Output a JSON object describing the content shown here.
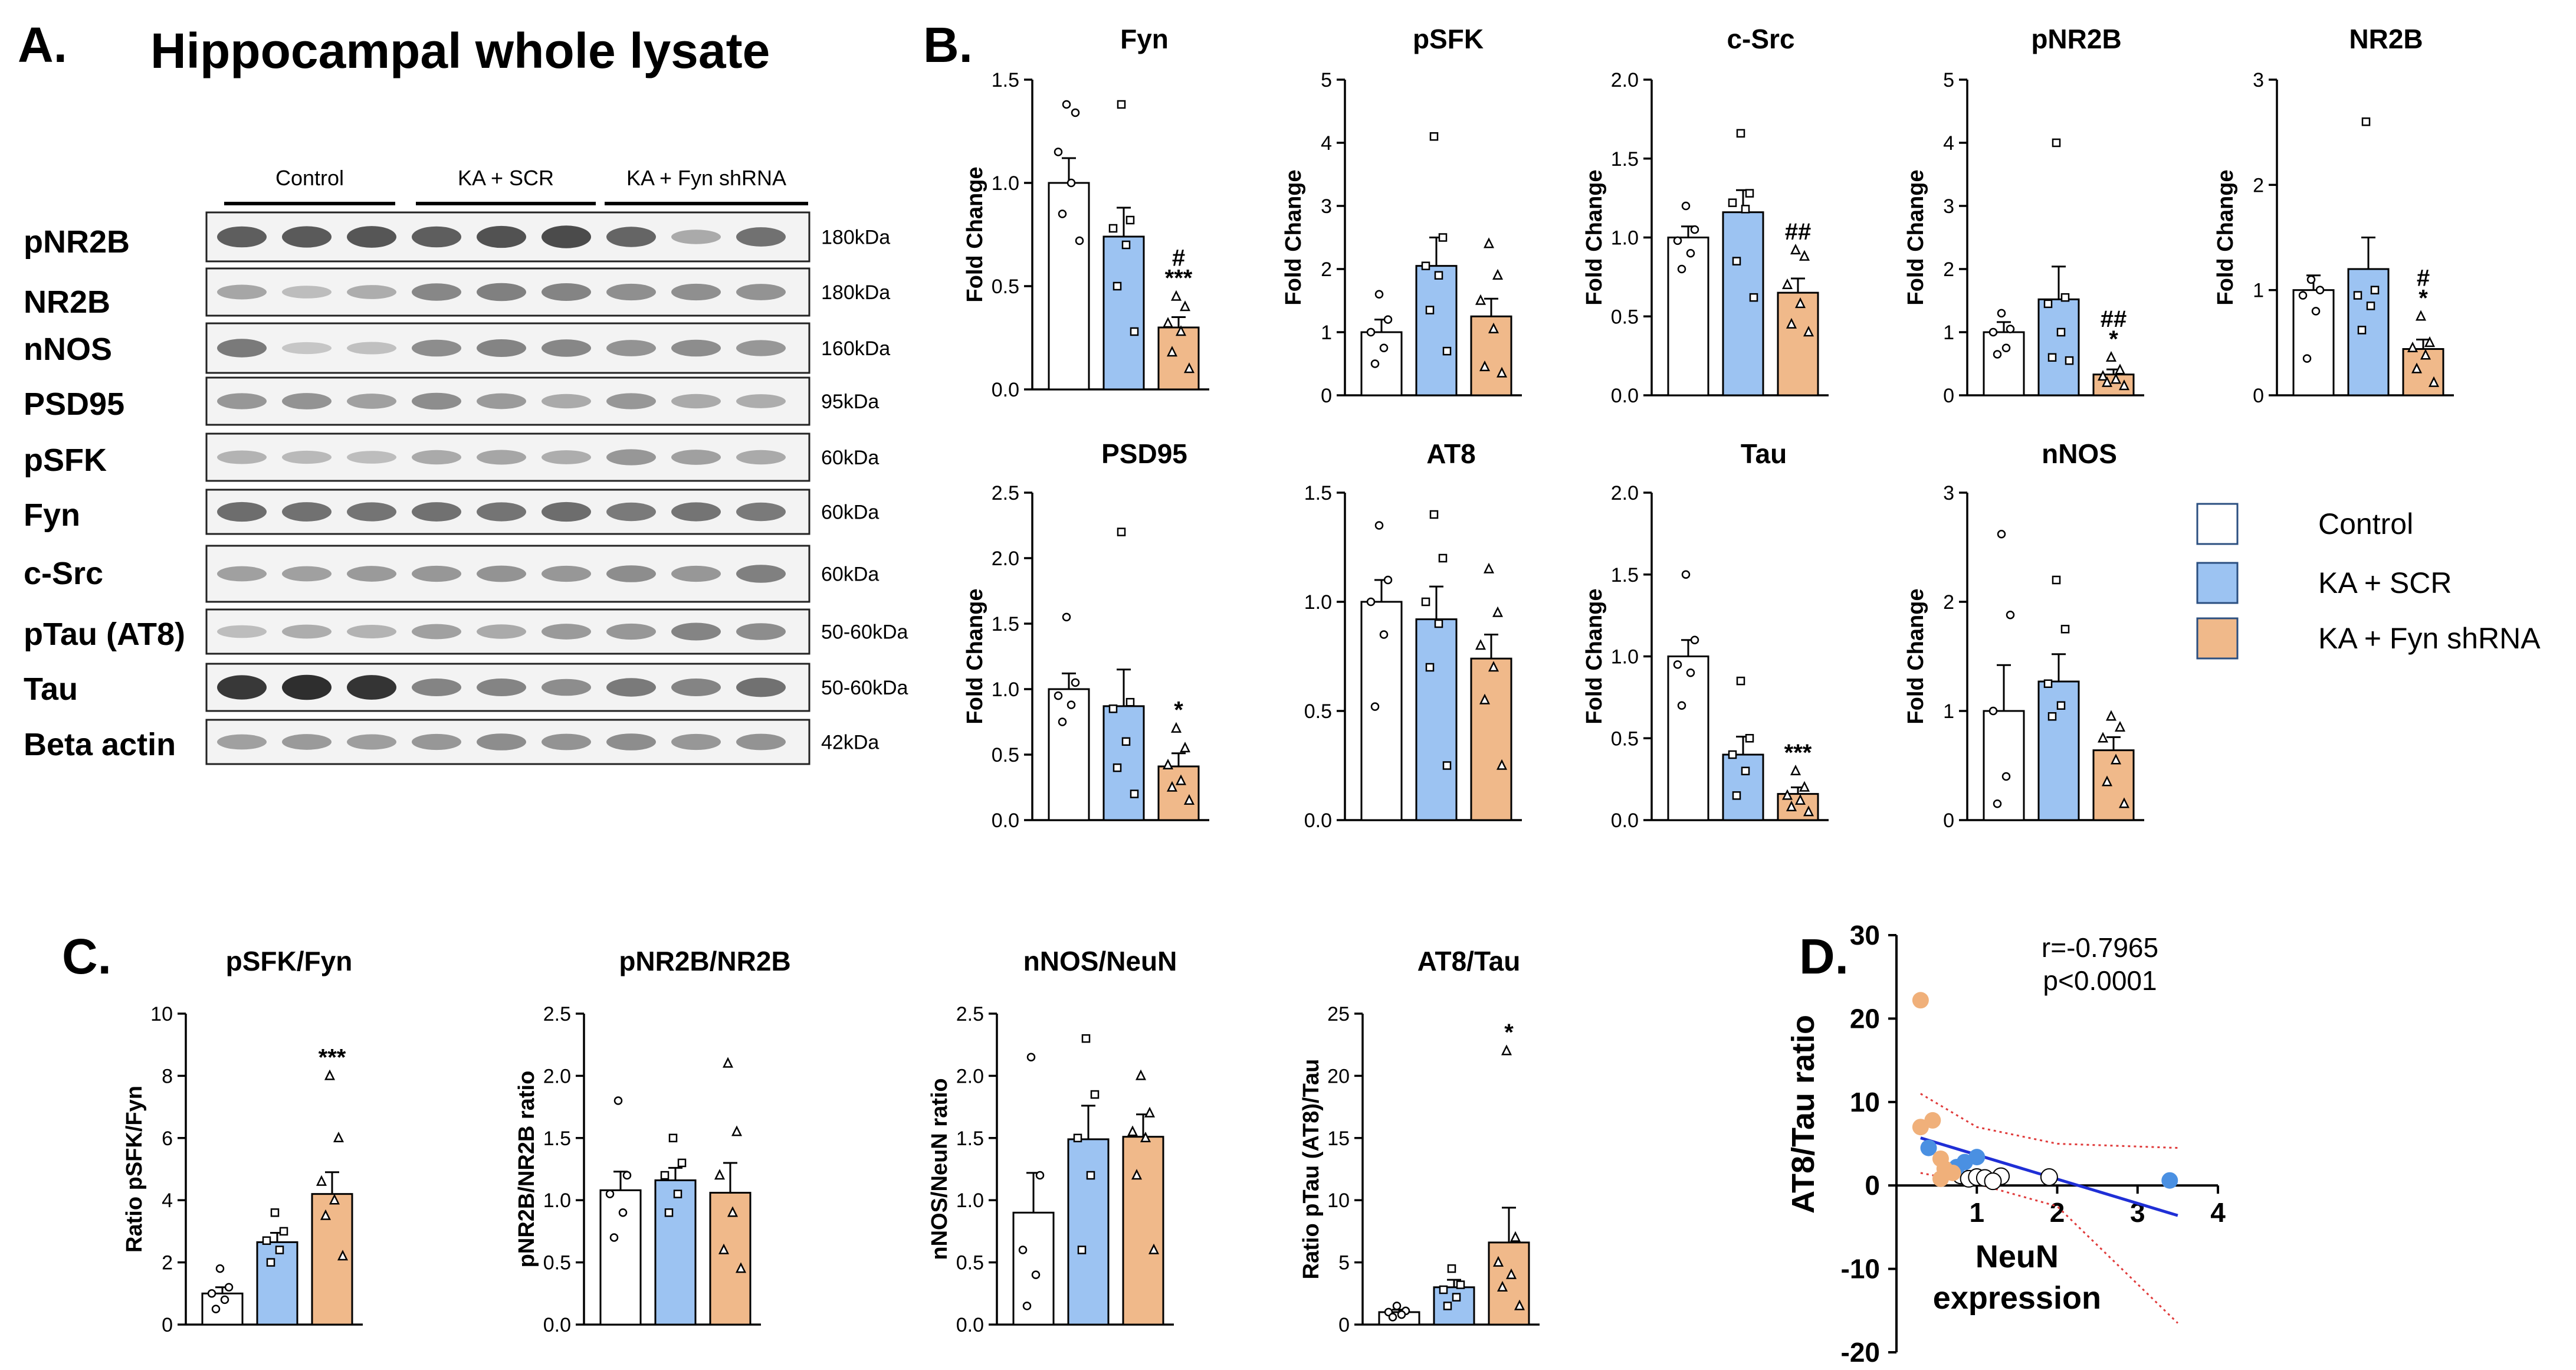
{
  "panel_a": {
    "letter": "A.",
    "title": "Hippocampal whole lysate",
    "groups": [
      "Control",
      "KA + SCR",
      "KA + Fyn shRNA"
    ],
    "blots": [
      {
        "label": "pNR2B",
        "kda": "180kDa"
      },
      {
        "label": "NR2B",
        "kda": "180kDa"
      },
      {
        "label": "nNOS",
        "kda": "160kDa"
      },
      {
        "label": "PSD95",
        "kda": "95kDa"
      },
      {
        "label": "pSFK",
        "kda": "60kDa"
      },
      {
        "label": "Fyn",
        "kda": "60kDa"
      },
      {
        "label": "c-Src",
        "kda": "60kDa"
      },
      {
        "label": "pTau (AT8)",
        "kda": "50-60kDa"
      },
      {
        "label": "Tau",
        "kda": "50-60kDa"
      },
      {
        "label": "Beta actin",
        "kda": "42kDa"
      }
    ],
    "band_intensity": [
      [
        0.7,
        0.72,
        0.74,
        0.7,
        0.76,
        0.8,
        0.66,
        0.3,
        0.6
      ],
      [
        0.32,
        0.2,
        0.28,
        0.48,
        0.52,
        0.5,
        0.44,
        0.44,
        0.42
      ],
      [
        0.55,
        0.15,
        0.18,
        0.45,
        0.5,
        0.48,
        0.42,
        0.45,
        0.4
      ],
      [
        0.4,
        0.42,
        0.35,
        0.45,
        0.38,
        0.3,
        0.4,
        0.3,
        0.28
      ],
      [
        0.25,
        0.22,
        0.2,
        0.3,
        0.32,
        0.28,
        0.4,
        0.35,
        0.3
      ],
      [
        0.62,
        0.6,
        0.58,
        0.6,
        0.58,
        0.62,
        0.55,
        0.58,
        0.55
      ],
      [
        0.35,
        0.35,
        0.38,
        0.4,
        0.42,
        0.4,
        0.45,
        0.4,
        0.52
      ],
      [
        0.2,
        0.28,
        0.25,
        0.35,
        0.3,
        0.38,
        0.4,
        0.5,
        0.45
      ],
      [
        0.9,
        0.95,
        0.92,
        0.5,
        0.5,
        0.45,
        0.55,
        0.5,
        0.6
      ],
      [
        0.35,
        0.38,
        0.36,
        0.4,
        0.45,
        0.42,
        0.45,
        0.4,
        0.42
      ]
    ]
  },
  "panel_b": {
    "letter": "B."
  },
  "panel_c": {
    "letter": "C."
  },
  "panel_d": {
    "letter": "D."
  },
  "legend": {
    "items": [
      {
        "label": "Control",
        "color": "#ffffff"
      },
      {
        "label": "KA + SCR",
        "color": "#9cc3f2"
      },
      {
        "label": "KA + Fyn shRNA",
        "color": "#f0b98a"
      }
    ]
  },
  "colors": {
    "control": "#ffffff",
    "scr": "#9cc3f2",
    "fyn": "#f0b98a",
    "stroke": "#000000",
    "regression": "#1f2fd6",
    "ci": "#e03b3b",
    "d_scr": "#4a90e2",
    "d_fyn": "#f0b07a"
  },
  "chart_data": [
    {
      "id": "fyn",
      "type": "bar",
      "title": "Fyn",
      "ylabel": "Fold Change",
      "ylim": [
        0,
        1.5
      ],
      "ticks": [
        "0.0",
        "0.5",
        "1.0",
        "1.5"
      ],
      "categories": [
        "Control",
        "KA + SCR",
        "KA + Fyn shRNA"
      ],
      "values": [
        1.0,
        0.74,
        0.3
      ],
      "sem": [
        0.12,
        0.14,
        0.05
      ],
      "points": [
        [
          1.38,
          1.34,
          1.15,
          1.0,
          0.85,
          0.72
        ],
        [
          1.38,
          0.82,
          0.78,
          0.7,
          0.5,
          0.28
        ],
        [
          0.45,
          0.4,
          0.32,
          0.28,
          0.18,
          0.1
        ]
      ],
      "annotations": [
        "",
        "",
        "#\n***"
      ]
    },
    {
      "id": "psfk",
      "type": "bar",
      "title": "pSFK",
      "ylabel": "Fold Change",
      "ylim": [
        0,
        5
      ],
      "ticks": [
        "0",
        "1",
        "2",
        "3",
        "4",
        "5"
      ],
      "categories": [
        "Control",
        "KA + SCR",
        "KA + Fyn shRNA"
      ],
      "values": [
        1.0,
        2.05,
        1.25
      ],
      "sem": [
        0.2,
        0.45,
        0.28
      ],
      "points": [
        [
          1.6,
          1.2,
          1.0,
          0.75,
          0.5
        ],
        [
          4.1,
          2.5,
          2.05,
          1.9,
          1.35,
          0.7
        ],
        [
          2.4,
          1.9,
          1.5,
          1.05,
          0.45,
          0.35
        ]
      ],
      "annotations": [
        "",
        "",
        ""
      ]
    },
    {
      "id": "csrc",
      "type": "bar",
      "title": "c-Src",
      "ylabel": "Fold Change",
      "ylim": [
        0,
        2.0
      ],
      "ticks": [
        "0.0",
        "0.5",
        "1.0",
        "1.5",
        "2.0"
      ],
      "categories": [
        "Control",
        "KA + SCR",
        "KA + Fyn shRNA"
      ],
      "values": [
        1.0,
        1.16,
        0.65
      ],
      "sem": [
        0.07,
        0.14,
        0.09
      ],
      "points": [
        [
          1.2,
          1.05,
          0.98,
          0.9,
          0.8
        ],
        [
          1.66,
          1.28,
          1.22,
          1.18,
          0.85,
          0.62
        ],
        [
          0.92,
          0.88,
          0.7,
          0.58,
          0.45,
          0.4
        ]
      ],
      "annotations": [
        "",
        "",
        "##"
      ]
    },
    {
      "id": "pnr2b",
      "type": "bar",
      "title": "pNR2B",
      "ylabel": "Fold Change",
      "ylim": [
        0,
        5
      ],
      "ticks": [
        "0",
        "1",
        "2",
        "3",
        "4",
        "5"
      ],
      "categories": [
        "Control",
        "KA + SCR",
        "KA + Fyn shRNA"
      ],
      "values": [
        1.0,
        1.52,
        0.33
      ],
      "sem": [
        0.16,
        0.52,
        0.08
      ],
      "points": [
        [
          1.3,
          1.05,
          1.0,
          0.75,
          0.65
        ],
        [
          4.0,
          1.55,
          1.45,
          1.0,
          0.6,
          0.55
        ],
        [
          0.6,
          0.4,
          0.3,
          0.25,
          0.2,
          0.15
        ]
      ],
      "annotations": [
        "",
        "",
        "##\n*"
      ]
    },
    {
      "id": "nr2b",
      "type": "bar",
      "title": "NR2B",
      "ylabel": "Fold Change",
      "ylim": [
        0,
        3
      ],
      "ticks": [
        "0",
        "1",
        "2",
        "3"
      ],
      "categories": [
        "Control",
        "KA + SCR",
        "KA + Fyn shRNA"
      ],
      "values": [
        1.0,
        1.2,
        0.44
      ],
      "sem": [
        0.14,
        0.3,
        0.09
      ],
      "points": [
        [
          1.1,
          1.0,
          0.95,
          0.8,
          0.35
        ],
        [
          2.6,
          1.0,
          0.95,
          0.85,
          0.62
        ],
        [
          0.75,
          0.5,
          0.45,
          0.38,
          0.25,
          0.12
        ]
      ],
      "annotations": [
        "",
        "",
        "#\n*"
      ]
    },
    {
      "id": "psd95",
      "type": "bar",
      "title": "PSD95",
      "ylabel": "Fold Change",
      "ylim": [
        0,
        2.5
      ],
      "ticks": [
        "0.0",
        "0.5",
        "1.0",
        "1.5",
        "2.0",
        "2.5"
      ],
      "categories": [
        "Control",
        "KA + SCR",
        "KA + Fyn shRNA"
      ],
      "values": [
        1.0,
        0.87,
        0.41
      ],
      "sem": [
        0.12,
        0.28,
        0.1
      ],
      "points": [
        [
          1.55,
          1.05,
          0.95,
          0.88,
          0.75
        ],
        [
          2.2,
          0.9,
          0.85,
          0.6,
          0.4,
          0.2
        ],
        [
          0.7,
          0.55,
          0.42,
          0.3,
          0.25,
          0.15
        ]
      ],
      "annotations": [
        "",
        "",
        "*"
      ]
    },
    {
      "id": "at8",
      "type": "bar",
      "title": "AT8",
      "ylabel": "",
      "ylim": [
        0,
        1.5
      ],
      "ticks": [
        "0.0",
        "0.5",
        "1.0",
        "1.5"
      ],
      "categories": [
        "Control",
        "KA + SCR",
        "KA + Fyn shRNA"
      ],
      "values": [
        1.0,
        0.92,
        0.74
      ],
      "sem": [
        0.1,
        0.15,
        0.11
      ],
      "points": [
        [
          1.35,
          1.1,
          1.0,
          0.85,
          0.52
        ],
        [
          1.4,
          1.2,
          1.0,
          0.9,
          0.7,
          0.25
        ],
        [
          1.15,
          0.95,
          0.8,
          0.7,
          0.55,
          0.25
        ]
      ],
      "annotations": [
        "",
        "",
        ""
      ]
    },
    {
      "id": "tau",
      "type": "bar",
      "title": "Tau",
      "ylabel": "Fold Change",
      "ylim": [
        0,
        2.0
      ],
      "ticks": [
        "0.0",
        "0.5",
        "1.0",
        "1.5",
        "2.0"
      ],
      "categories": [
        "Control",
        "KA + SCR",
        "KA + Fyn shRNA"
      ],
      "values": [
        1.0,
        0.4,
        0.16
      ],
      "sem": [
        0.1,
        0.11,
        0.04
      ],
      "points": [
        [
          1.5,
          1.1,
          0.95,
          0.9,
          0.7
        ],
        [
          0.85,
          0.5,
          0.4,
          0.3,
          0.15
        ],
        [
          0.3,
          0.2,
          0.15,
          0.12,
          0.08,
          0.05
        ]
      ],
      "annotations": [
        "",
        "",
        "***"
      ]
    },
    {
      "id": "nnos",
      "type": "bar",
      "title": "nNOS",
      "ylabel": "Fold Change",
      "ylim": [
        0,
        3
      ],
      "ticks": [
        "0",
        "1",
        "2",
        "3"
      ],
      "categories": [
        "Control",
        "KA + SCR",
        "KA + Fyn shRNA"
      ],
      "values": [
        1.0,
        1.27,
        0.64
      ],
      "sem": [
        0.42,
        0.25,
        0.12
      ],
      "points": [
        [
          2.62,
          1.88,
          1.0,
          0.4,
          0.15
        ],
        [
          2.2,
          1.75,
          1.25,
          1.05,
          0.95
        ],
        [
          0.95,
          0.85,
          0.75,
          0.55,
          0.35,
          0.15
        ]
      ],
      "annotations": [
        "",
        "",
        ""
      ]
    },
    {
      "id": "psfk_fyn",
      "type": "bar",
      "title": "pSFK/Fyn",
      "ylabel": "Ratio pSFK/Fyn",
      "ylim": [
        0,
        10
      ],
      "ticks": [
        "0",
        "2",
        "4",
        "6",
        "8",
        "10"
      ],
      "categories": [
        "Control",
        "KA + SCR",
        "KA + Fyn shRNA"
      ],
      "values": [
        1.0,
        2.65,
        4.2
      ],
      "sem": [
        0.2,
        0.3,
        0.7
      ],
      "points": [
        [
          1.8,
          1.2,
          1.0,
          0.8,
          0.5
        ],
        [
          3.6,
          3.0,
          2.7,
          2.4,
          2.0
        ],
        [
          8.0,
          6.0,
          4.6,
          4.0,
          3.5,
          2.2
        ]
      ],
      "annotations": [
        "",
        "",
        "***"
      ]
    },
    {
      "id": "pnr2b_nr2b",
      "type": "bar",
      "title": "pNR2B/NR2B",
      "ylabel": "pNR2B/NR2B ratio",
      "ylim": [
        0,
        2.5
      ],
      "ticks": [
        "0.0",
        "0.5",
        "1.0",
        "1.5",
        "2.0",
        "2.5"
      ],
      "categories": [
        "Control",
        "KA + SCR",
        "KA + Fyn shRNA"
      ],
      "values": [
        1.08,
        1.16,
        1.06
      ],
      "sem": [
        0.15,
        0.1,
        0.24
      ],
      "points": [
        [
          1.8,
          1.2,
          1.05,
          0.9,
          0.7
        ],
        [
          1.5,
          1.3,
          1.2,
          1.05,
          0.9
        ],
        [
          2.1,
          1.55,
          1.2,
          0.9,
          0.6,
          0.45
        ]
      ],
      "annotations": [
        "",
        "",
        ""
      ]
    },
    {
      "id": "nnos_neun",
      "type": "bar",
      "title": "nNOS/NeuN",
      "ylabel": "nNOS/NeuN ratio",
      "ylim": [
        0,
        2.5
      ],
      "ticks": [
        "0.0",
        "0.5",
        "1.0",
        "1.5",
        "2.0",
        "2.5"
      ],
      "categories": [
        "Control",
        "KA + SCR",
        "KA + Fyn shRNA"
      ],
      "values": [
        0.9,
        1.49,
        1.51
      ],
      "sem": [
        0.32,
        0.27,
        0.18
      ],
      "points": [
        [
          2.15,
          1.2,
          0.6,
          0.4,
          0.15
        ],
        [
          2.3,
          1.85,
          1.5,
          1.2,
          0.6
        ],
        [
          2.0,
          1.7,
          1.55,
          1.5,
          1.2,
          0.6
        ]
      ],
      "annotations": [
        "",
        "",
        ""
      ]
    },
    {
      "id": "at8_tau",
      "type": "bar",
      "title": "AT8/Tau",
      "ylabel": "Ratio pTau (AT8)/Tau",
      "ylim": [
        0,
        25
      ],
      "ticks": [
        "0",
        "5",
        "10",
        "15",
        "20",
        "25"
      ],
      "categories": [
        "Control",
        "KA + SCR",
        "KA + Fyn shRNA"
      ],
      "values": [
        1.0,
        3.0,
        6.6
      ],
      "sem": [
        0.2,
        0.6,
        2.8
      ],
      "points": [
        [
          1.5,
          1.1,
          1.0,
          0.8,
          0.6
        ],
        [
          4.5,
          3.2,
          2.8,
          2.2,
          1.5
        ],
        [
          22.0,
          7.0,
          5.0,
          4.0,
          3.0,
          1.5
        ]
      ],
      "annotations": [
        "",
        "",
        "*"
      ]
    },
    {
      "id": "neun_corr",
      "type": "scatter",
      "title": "",
      "xlabel": "NeuN\nexpression",
      "ylabel": "AT8/Tau ratio",
      "xlim": [
        0,
        4
      ],
      "ylim": [
        -20,
        30
      ],
      "xticks": [
        "1",
        "2",
        "3",
        "4"
      ],
      "yticks": [
        "-20",
        "-10",
        "0",
        "10",
        "20",
        "30"
      ],
      "annotation": [
        "r=-0.7965",
        "p<0.0001"
      ],
      "series": [
        {
          "name": "Control",
          "points": [
            [
              0.8,
              1.2
            ],
            [
              0.9,
              0.8
            ],
            [
              1.0,
              1.0
            ],
            [
              1.1,
              0.9
            ],
            [
              1.3,
              1.1
            ],
            [
              1.2,
              0.5
            ],
            [
              1.9,
              1.0
            ]
          ]
        },
        {
          "name": "KA + SCR",
          "points": [
            [
              0.4,
              4.5
            ],
            [
              0.85,
              2.8
            ],
            [
              1.0,
              3.4
            ],
            [
              0.75,
              2.2
            ],
            [
              3.4,
              0.6
            ]
          ]
        },
        {
          "name": "KA + Fyn shRNA",
          "points": [
            [
              0.3,
              22.2
            ],
            [
              0.3,
              7.0
            ],
            [
              0.45,
              7.8
            ],
            [
              0.55,
              3.2
            ],
            [
              0.6,
              2.0
            ],
            [
              0.55,
              0.8
            ],
            [
              0.7,
              1.5
            ]
          ]
        }
      ],
      "regression": [
        [
          0.3,
          5.7
        ],
        [
          3.5,
          -3.6
        ]
      ]
    }
  ]
}
